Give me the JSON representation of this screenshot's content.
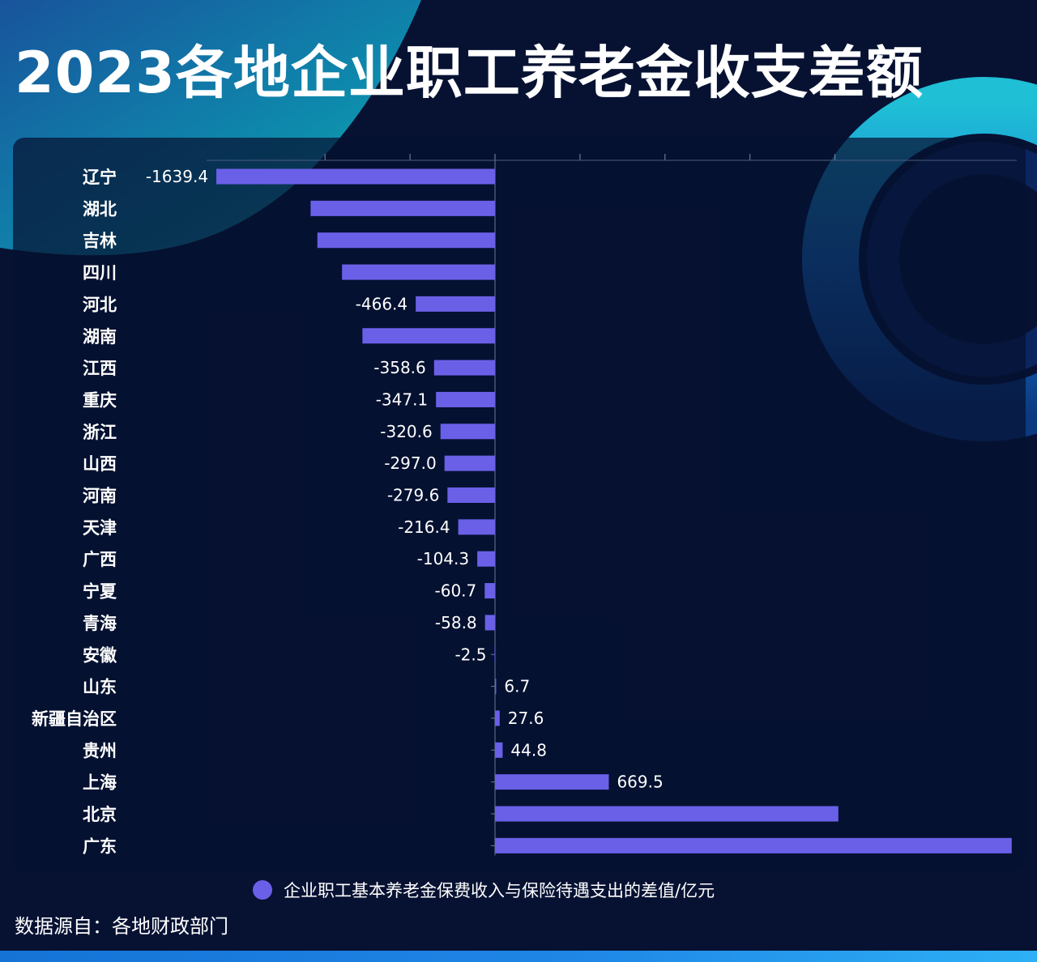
{
  "title": "2023各地企业职工养老金收支差额",
  "source": "数据源自：各地财政部门",
  "colors": {
    "background": "#071233",
    "bar": "#6a60e8",
    "text": "#ffffff",
    "accent_teal": "#18c8c8",
    "accent_blue": "#1e8ff0"
  },
  "chart_data": {
    "type": "bar",
    "orientation": "horizontal",
    "categories": [
      "辽宁",
      "湖北",
      "吉林",
      "四川",
      "河北",
      "湖南",
      "江西",
      "重庆",
      "浙江",
      "山西",
      "河南",
      "天津",
      "广西",
      "宁夏",
      "青海",
      "安徽",
      "山东",
      "新疆自治区",
      "贵州",
      "上海",
      "北京",
      "广东"
    ],
    "series": [
      {
        "name": "企业职工基本养老金保费收入与保险待遇支出的差值/亿元",
        "values": [
          -1639.4,
          -1085,
          -1045,
          -900,
          -466.4,
          -780,
          -358.6,
          -347.1,
          -320.6,
          -297.0,
          -279.6,
          -216.4,
          -104.3,
          -60.7,
          -58.8,
          -2.5,
          6.7,
          27.6,
          44.8,
          669.5,
          2020,
          3040
        ],
        "labels": [
          "-1639.4",
          "",
          "",
          "",
          "-466.4",
          "",
          "-358.6",
          "-347.1",
          "-320.6",
          "-297.0",
          "-279.6",
          "-216.4",
          "-104.3",
          "-60.7",
          "-58.8",
          "-2.5",
          "6.7",
          "27.6",
          "44.8",
          "669.5",
          "",
          ""
        ]
      }
    ],
    "xlim": [
      -1650,
      3050
    ],
    "legend_position": "bottom-center",
    "grid": false,
    "title": "2023各地企业职工养老金收支差额"
  }
}
